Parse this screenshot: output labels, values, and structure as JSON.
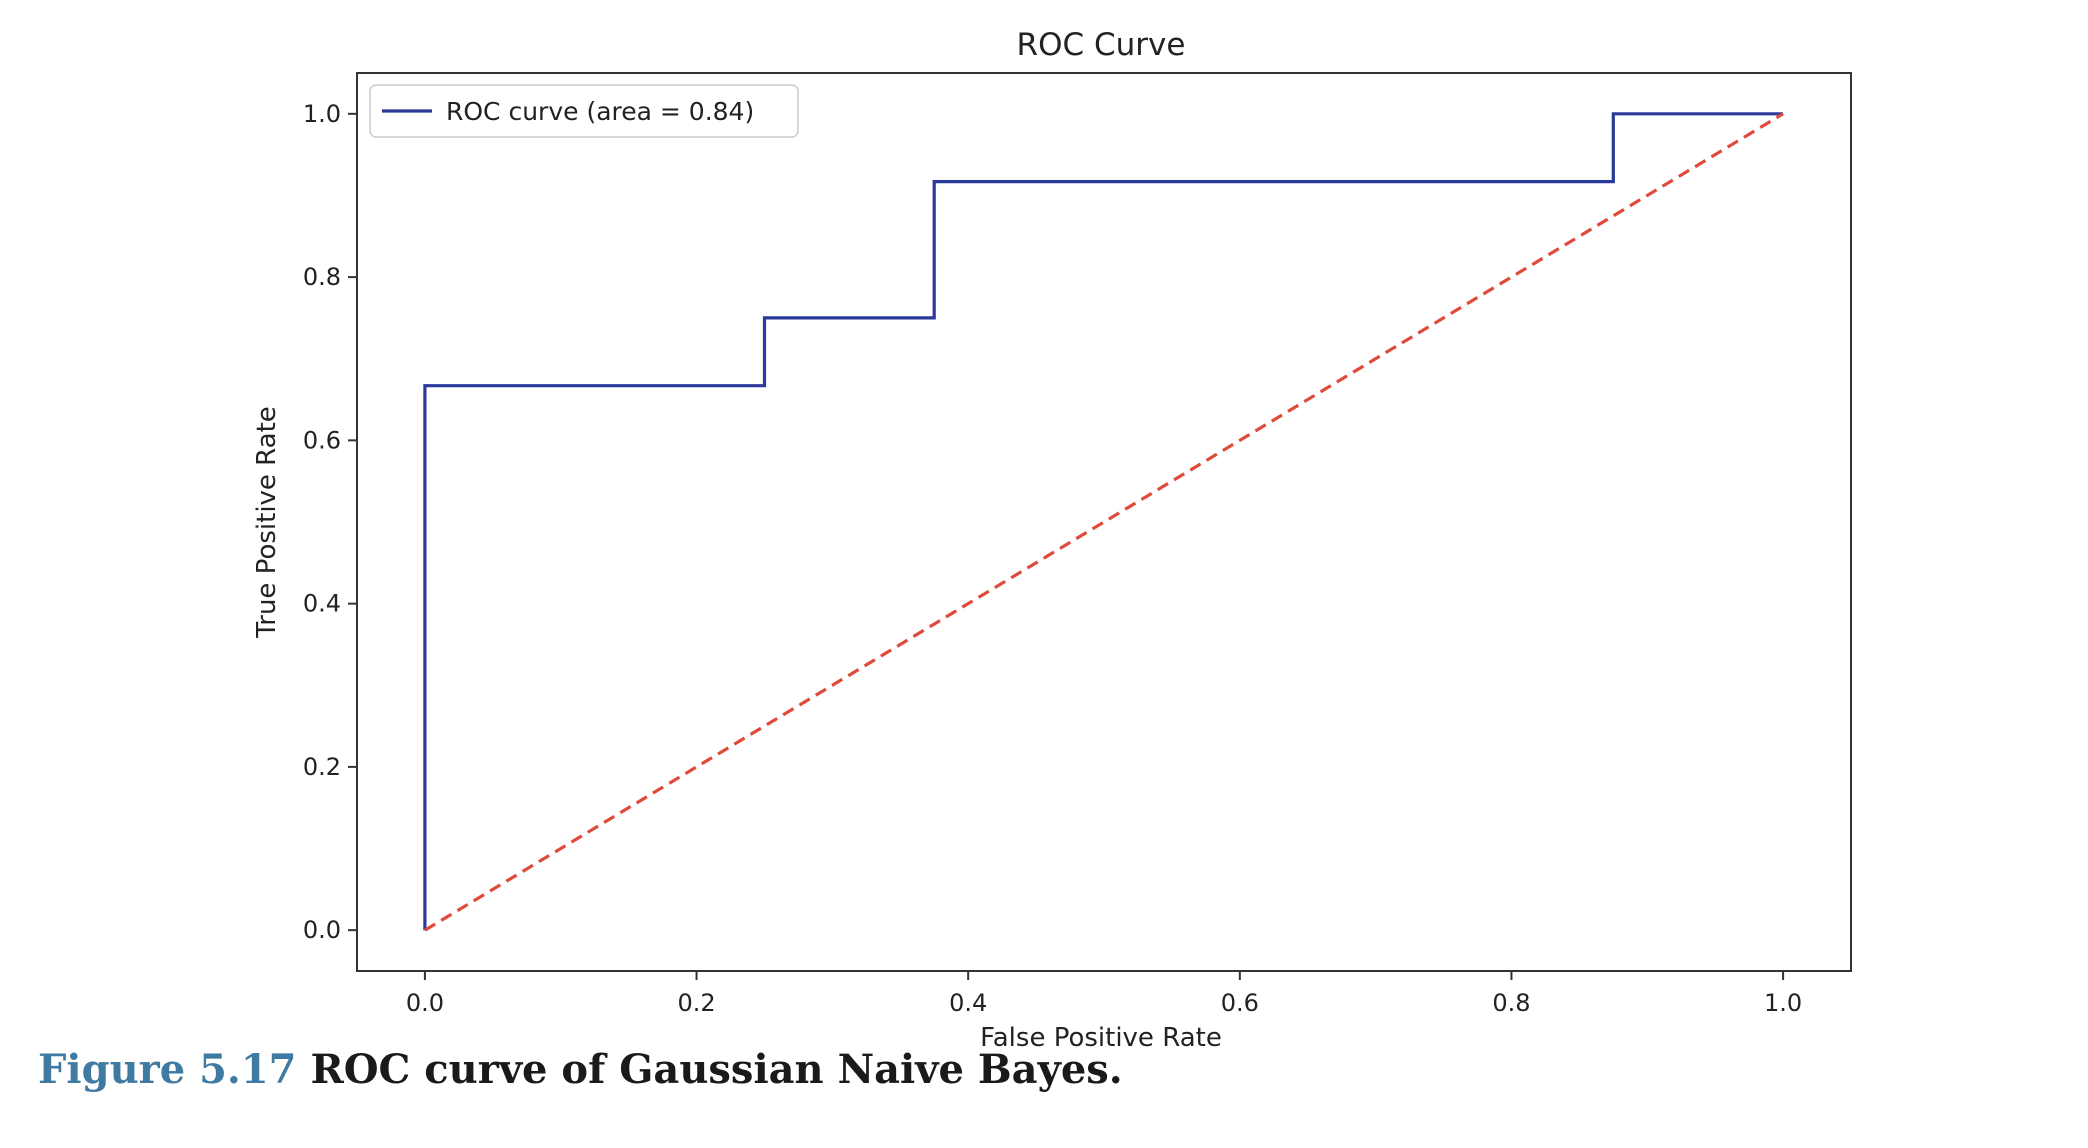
{
  "chart_data": {
    "type": "line",
    "title": "ROC Curve",
    "xlabel": "False Positive Rate",
    "ylabel": "True Positive Rate",
    "xlim": [
      -0.05,
      1.05
    ],
    "ylim": [
      -0.05,
      1.05
    ],
    "xticks": [
      0.0,
      0.2,
      0.4,
      0.6,
      0.8,
      1.0
    ],
    "yticks": [
      0.0,
      0.2,
      0.4,
      0.6,
      0.8,
      1.0
    ],
    "xtick_labels": [
      "0.0",
      "0.2",
      "0.4",
      "0.6",
      "0.8",
      "1.0"
    ],
    "ytick_labels": [
      "0.0",
      "0.2",
      "0.4",
      "0.6",
      "0.8",
      "1.0"
    ],
    "grid": false,
    "legend_position": "top-left",
    "series": [
      {
        "name": "ROC curve (area = 0.84)",
        "color": "#2b3a9a",
        "style": "solid",
        "x": [
          0.0,
          0.0,
          0.25,
          0.25,
          0.375,
          0.375,
          0.875,
          0.875,
          1.0
        ],
        "y": [
          0.0,
          0.667,
          0.667,
          0.75,
          0.75,
          0.917,
          0.917,
          1.0,
          1.0
        ]
      },
      {
        "color": "#e04a3a",
        "style": "dashed",
        "x": [
          0.0,
          1.0
        ],
        "y": [
          0.0,
          1.0
        ]
      }
    ]
  },
  "caption": {
    "label": "Figure 5.17",
    "text": "ROC curve of Gaussian Naive Bayes."
  }
}
